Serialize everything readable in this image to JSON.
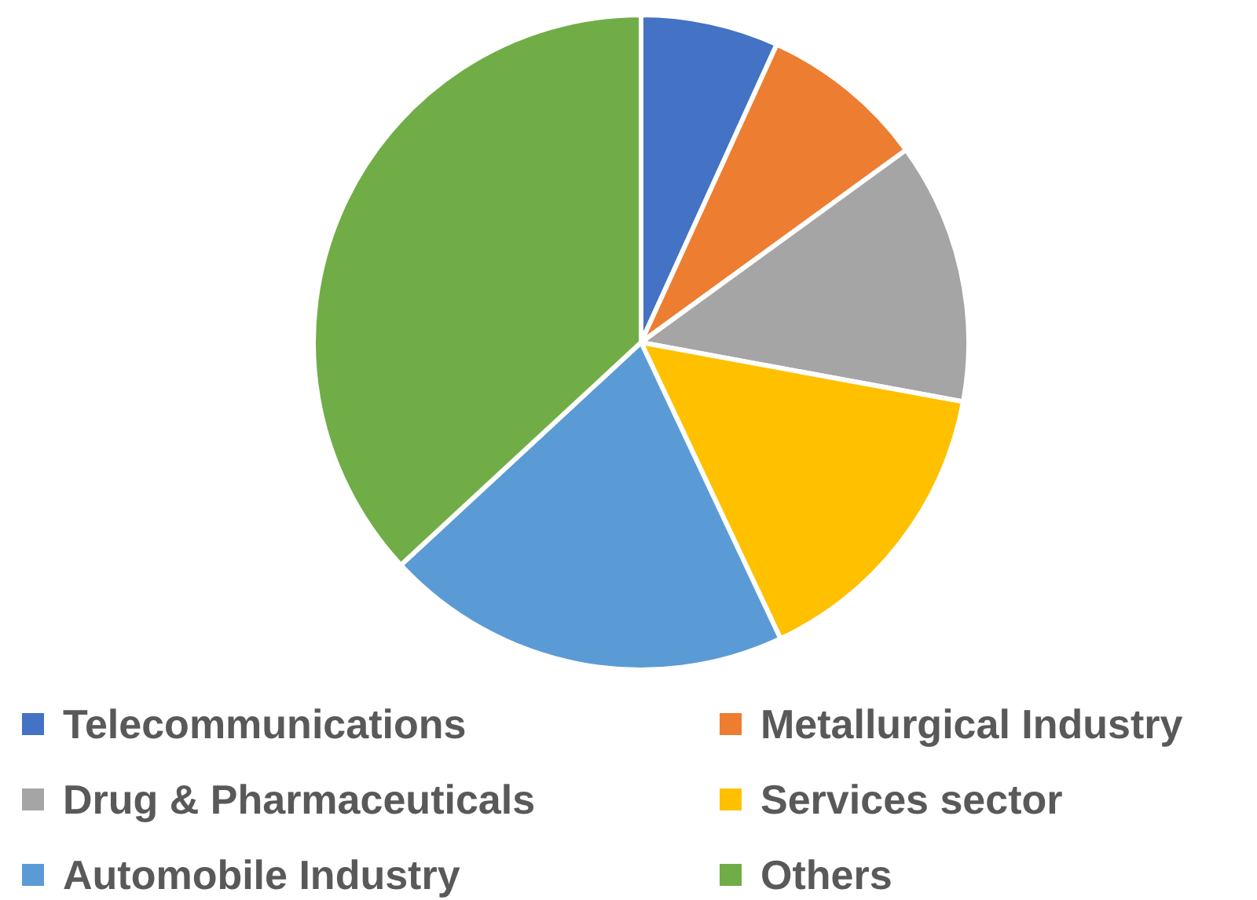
{
  "chart_data": {
    "type": "pie",
    "categories": [
      "Telecommunications",
      "Metallurgical Industry",
      "Drug & Pharmaceuticals",
      "Services sector",
      "Automobile Industry",
      "Others"
    ],
    "values": [
      6.8,
      8.2,
      12.9,
      15.1,
      20.1,
      36.9
    ],
    "colors": [
      "#4472c4",
      "#ed7d31",
      "#a5a5a5",
      "#ffc000",
      "#5b9bd5",
      "#70ad47"
    ],
    "legend": "bottom"
  }
}
